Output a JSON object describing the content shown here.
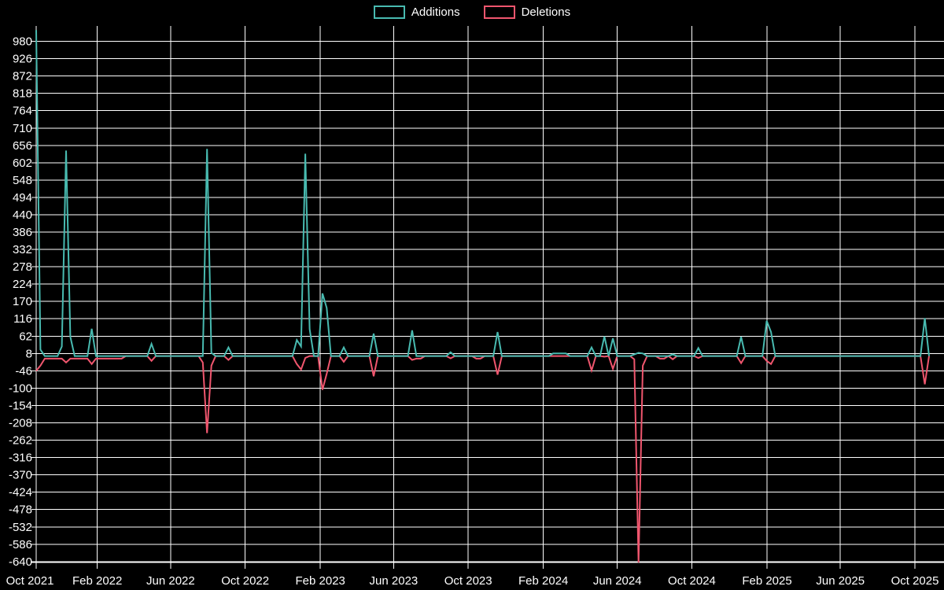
{
  "chart": {
    "background": "#000000",
    "grid_color": "#ffffff",
    "text_color": "#ffffff"
  },
  "chart_data": {
    "type": "line",
    "title": "",
    "xlabel": "",
    "ylabel": "",
    "legend_position": "top-center",
    "grid": true,
    "x_labels": [
      "Oct 2021",
      "Feb 2022",
      "Jun 2022",
      "Oct 2022",
      "Feb 2023",
      "Jun 2023",
      "Oct 2023",
      "Feb 2024",
      "Jun 2024",
      "Oct 2024",
      "Feb 2025",
      "Jun 2025",
      "Oct 2025"
    ],
    "x_label_day_offsets": [
      0,
      100,
      220,
      342,
      465,
      585,
      707,
      830,
      951,
      1073,
      1196,
      1316,
      1438
    ],
    "x_total_days": 1460,
    "y_ticks": [
      980,
      926,
      872,
      818,
      764,
      710,
      656,
      602,
      548,
      494,
      440,
      386,
      332,
      278,
      224,
      170,
      116,
      62,
      8,
      -46,
      -100,
      -154,
      -208,
      -262,
      -316,
      -370,
      -424,
      -478,
      -532,
      -586,
      -640
    ],
    "y_range": [
      -648,
      1028
    ],
    "weeks_total": 210,
    "series": [
      {
        "name": "Additions",
        "color": "#48bab0",
        "values_sparse": {
          "0": 1015,
          "1": 20,
          "6": 30,
          "7": 640,
          "8": 60,
          "13": 85,
          "27": 38,
          "40": 645,
          "41": 10,
          "45": 27,
          "61": 50,
          "62": 30,
          "63": 630,
          "64": 84,
          "67": 195,
          "68": 150,
          "72": 27,
          "79": 70,
          "88": 80,
          "97": 12,
          "108": 75,
          "121": 8,
          "122": 8,
          "123": 8,
          "124": 8,
          "130": 27,
          "133": 61,
          "135": 55,
          "140": 5,
          "141": 10,
          "142": 8,
          "149": 5,
          "155": 25,
          "165": 60,
          "171": 110,
          "172": 75,
          "208": 118
        }
      },
      {
        "name": "Deletions",
        "color": "#f0566e",
        "values_sparse": {
          "0": -46,
          "1": -30,
          "2": -8,
          "3": -8,
          "4": -8,
          "5": -8,
          "6": -8,
          "7": -20,
          "8": -8,
          "9": -8,
          "10": -8,
          "11": -8,
          "12": -8,
          "13": -25,
          "14": -8,
          "15": -8,
          "16": -8,
          "17": -8,
          "18": -8,
          "19": -8,
          "20": -8,
          "27": -15,
          "39": -20,
          "40": -240,
          "41": -30,
          "45": -12,
          "61": -25,
          "62": -42,
          "63": -6,
          "67": -105,
          "68": -55,
          "72": -18,
          "79": -63,
          "88": -12,
          "89": -8,
          "90": -8,
          "97": -7,
          "103": -8,
          "104": -8,
          "108": -58,
          "130": -45,
          "133": -2,
          "135": -40,
          "140": -10,
          "141": -643,
          "142": -30,
          "146": -8,
          "147": -8,
          "149": -10,
          "155": -6,
          "165": -22,
          "171": -15,
          "172": -25,
          "208": -88
        }
      }
    ]
  }
}
